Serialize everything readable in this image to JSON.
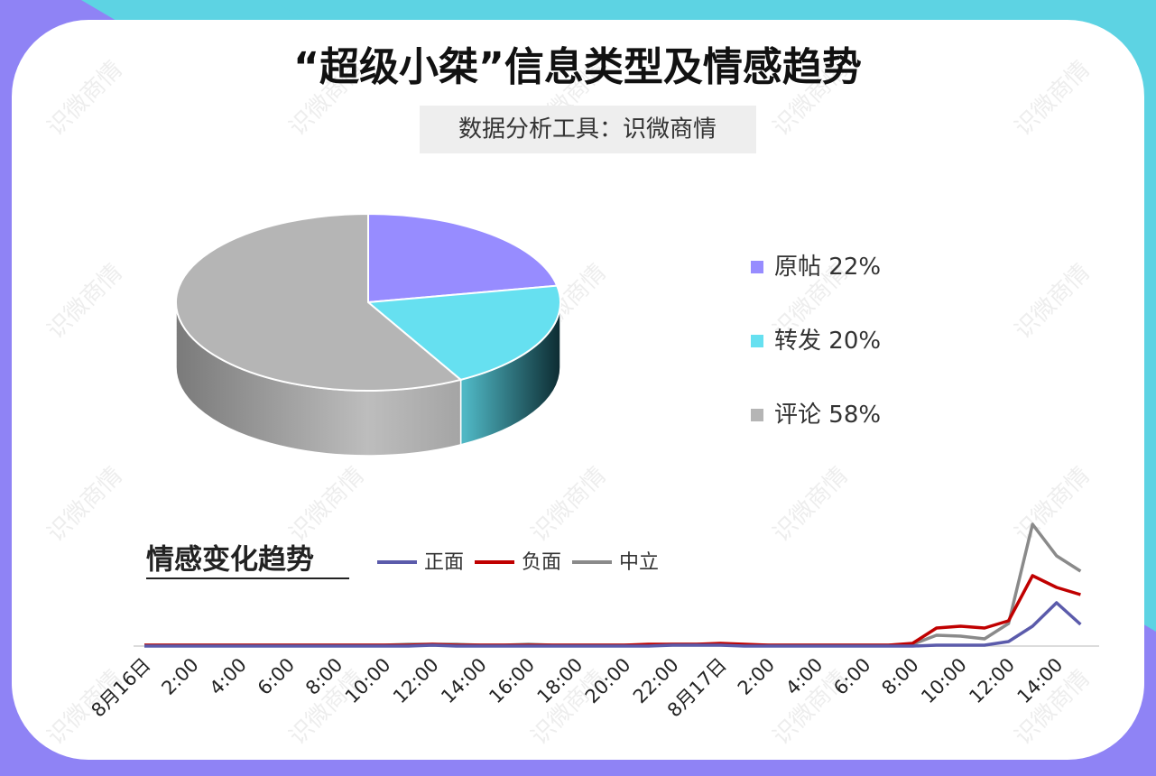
{
  "title": "“超级小桀”信息类型及情感趋势",
  "subtitle": "数据分析工具：识微商情",
  "watermark": "识微商情",
  "chart_data": [
    {
      "type": "pie",
      "categories": [
        "原帖",
        "转发",
        "评论"
      ],
      "values": [
        22,
        20,
        58
      ],
      "value_labels": [
        "22%",
        "20%",
        "58%"
      ],
      "colors": [
        "#978cff",
        "#66e0f0",
        "#b5b5b5"
      ]
    },
    {
      "type": "line",
      "title": "情感变化趋势",
      "categories": [
        "8月16日",
        null,
        "2:00",
        null,
        "4:00",
        null,
        "6:00",
        null,
        "8:00",
        null,
        "10:00",
        null,
        "12:00",
        null,
        "14:00",
        null,
        "16:00",
        null,
        "18:00",
        null,
        "20:00",
        null,
        "22:00",
        null,
        "8月17日",
        null,
        "2:00",
        null,
        "4:00",
        null,
        "6:00",
        null,
        "8:00",
        null,
        "10:00",
        null,
        "12:00",
        null,
        "14:00",
        null
      ],
      "series": [
        {
          "name": "正面",
          "color": "#5b5bab",
          "values": [
            0,
            0,
            0,
            0,
            0,
            0,
            0,
            0,
            0,
            0,
            0,
            0,
            1,
            0,
            0,
            0,
            0,
            0,
            0,
            0,
            0,
            0,
            1,
            1,
            1,
            0,
            0,
            0,
            0,
            0,
            0,
            0,
            0,
            1,
            1,
            1,
            5,
            22,
            48,
            24
          ]
        },
        {
          "name": "负面",
          "color": "#c00000",
          "values": [
            1,
            1,
            1,
            1,
            1,
            1,
            1,
            1,
            1,
            1,
            1,
            1,
            2,
            1,
            1,
            1,
            1,
            1,
            1,
            1,
            1,
            2,
            2,
            2,
            3,
            2,
            1,
            1,
            1,
            1,
            1,
            1,
            3,
            20,
            22,
            20,
            28,
            78,
            65,
            57
          ]
        },
        {
          "name": "中立",
          "color": "#8a8a8a",
          "values": [
            1,
            1,
            1,
            1,
            1,
            1,
            1,
            1,
            1,
            1,
            1,
            2,
            2,
            2,
            1,
            1,
            2,
            1,
            1,
            1,
            1,
            1,
            2,
            2,
            2,
            1,
            1,
            1,
            1,
            1,
            1,
            1,
            2,
            12,
            11,
            8,
            25,
            135,
            100,
            83
          ]
        }
      ],
      "ylim": [
        0,
        150
      ]
    }
  ]
}
